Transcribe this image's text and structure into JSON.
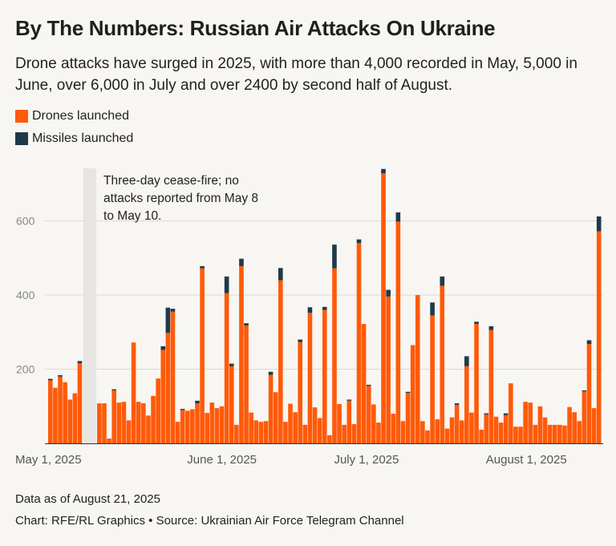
{
  "header": {
    "title": "By The Numbers: Russian Air Attacks On Ukraine",
    "subtitle": "Drone attacks have surged in 2025, with more than 4,000 recorded in May, 5,000 in June, over 6,000 in July and over 2400 by second half of August."
  },
  "legend": {
    "drones_label": "Drones launched",
    "missiles_label": "Missiles launched"
  },
  "colors": {
    "drones": "#ff5a0a",
    "missiles": "#1e3a4a",
    "grid": "#dedad4",
    "ceasefire_band": "#e7e5e1"
  },
  "footer": {
    "note": "Data as of August 21, 2025",
    "credit": "Chart: RFE/RL Graphics • Source: Ukrainian Air Force Telegram Channel"
  },
  "chart_data": {
    "type": "bar",
    "stacked": true,
    "title": "By The Numbers: Russian Air Attacks On Ukraine",
    "xlabel": "",
    "ylabel": "",
    "ylim": [
      0,
      730
    ],
    "yticks": [
      200,
      400,
      600
    ],
    "xtick_labels": [
      {
        "label": "May 1, 2025",
        "day_index": 0
      },
      {
        "label": "June 1, 2025",
        "day_index": 31
      },
      {
        "label": "July 1, 2025",
        "day_index": 61
      },
      {
        "label": "August 1, 2025",
        "day_index": 92
      }
    ],
    "annotation": {
      "lines": [
        "Three-day cease-fire; no",
        "attacks reported from May 8",
        "to May 10."
      ],
      "start_day_index": 7,
      "end_day_index": 9
    },
    "categories_start": "2025-05-01",
    "series": [
      {
        "name": "Drones launched",
        "values": [
          170,
          150,
          180,
          165,
          118,
          135,
          216,
          0,
          0,
          0,
          108,
          108,
          13,
          143,
          110,
          112,
          62,
          272,
          112,
          108,
          75,
          128,
          175,
          252,
          298,
          355,
          58,
          90,
          88,
          92,
          108,
          472,
          82,
          110,
          95,
          100,
          405,
          208,
          50,
          478,
          318,
          83,
          62,
          58,
          60,
          185,
          138,
          440,
          58,
          107,
          84,
          273,
          50,
          352,
          97,
          68,
          360,
          22,
          472,
          106,
          50,
          115,
          52,
          540,
          322,
          155,
          105,
          56,
          728,
          396,
          80,
          598,
          60,
          136,
          265,
          400,
          60,
          35,
          345,
          65,
          425,
          40,
          70,
          104,
          62,
          208,
          83,
          322,
          37,
          78,
          306,
          72,
          56,
          76,
          162,
          45,
          45,
          112,
          110,
          50,
          100,
          70,
          50,
          50,
          50,
          48,
          98,
          84,
          60,
          140,
          268,
          95,
          572
        ]
      },
      {
        "name": "Missiles launched",
        "values": [
          4,
          0,
          4,
          0,
          0,
          0,
          6,
          0,
          0,
          0,
          0,
          0,
          0,
          3,
          0,
          0,
          0,
          0,
          0,
          0,
          0,
          0,
          0,
          10,
          68,
          8,
          0,
          3,
          0,
          0,
          7,
          6,
          0,
          0,
          0,
          0,
          45,
          7,
          0,
          20,
          6,
          0,
          0,
          0,
          0,
          8,
          0,
          33,
          0,
          0,
          0,
          7,
          0,
          15,
          0,
          0,
          8,
          0,
          64,
          0,
          0,
          3,
          0,
          10,
          0,
          3,
          0,
          0,
          12,
          18,
          0,
          25,
          0,
          3,
          0,
          0,
          0,
          0,
          35,
          0,
          25,
          0,
          0,
          4,
          0,
          27,
          0,
          6,
          0,
          3,
          10,
          0,
          0,
          5,
          0,
          0,
          0,
          0,
          0,
          0,
          0,
          0,
          0,
          0,
          0,
          0,
          0,
          0,
          0,
          3,
          10,
          0,
          40
        ]
      }
    ]
  }
}
